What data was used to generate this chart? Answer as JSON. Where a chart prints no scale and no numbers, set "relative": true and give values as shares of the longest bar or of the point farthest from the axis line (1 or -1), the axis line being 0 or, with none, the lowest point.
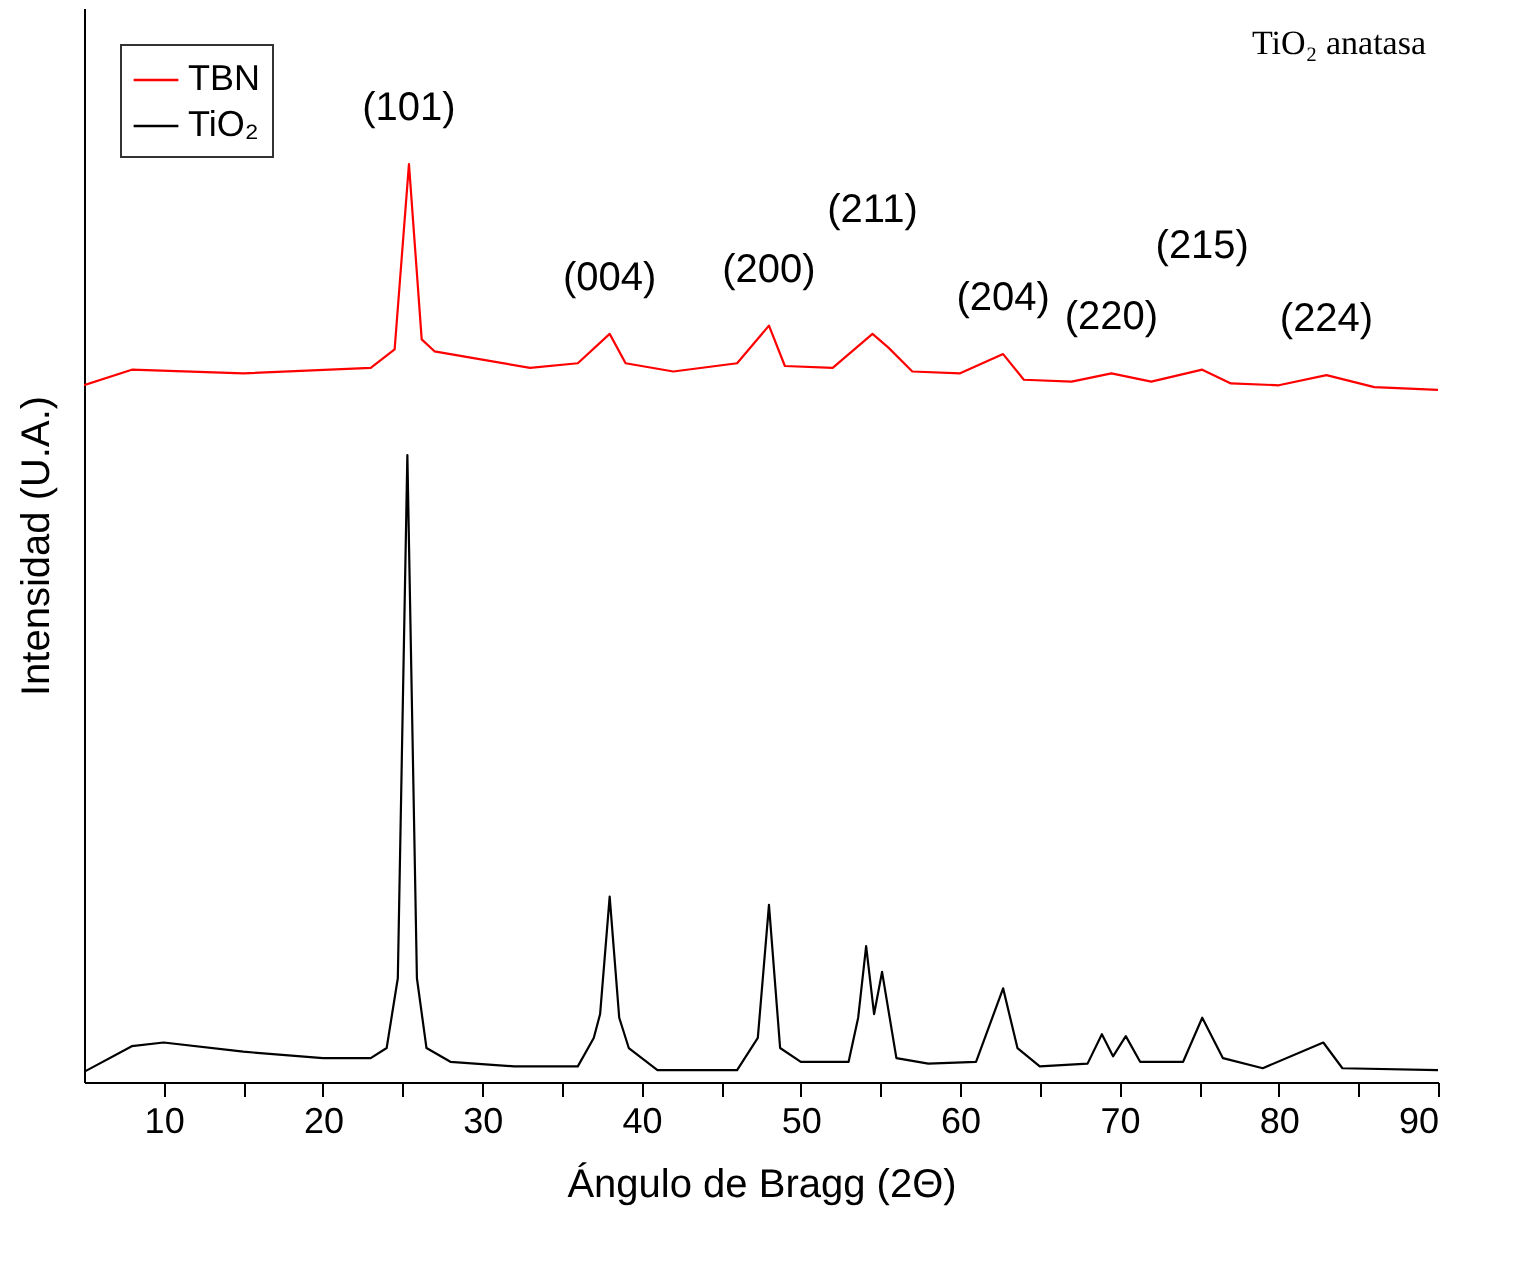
{
  "chart_data": {
    "type": "line",
    "xlabel": "Ángulo de Bragg (2Θ)",
    "ylabel": "Intensidad (U.A.)",
    "relative": true,
    "legend": "top left",
    "xlim": [
      5,
      90
    ],
    "xticks": [
      10,
      {
        "value": 15,
        "label": null
      },
      20,
      {
        "value": 25,
        "label": null
      },
      30,
      {
        "value": 35,
        "label": null
      },
      40,
      {
        "value": 45,
        "label": null
      },
      50,
      {
        "value": 55,
        "label": null
      },
      60,
      {
        "value": 65,
        "label": null
      },
      70,
      {
        "value": 75,
        "label": null
      },
      80,
      {
        "value": 85,
        "label": null
      },
      90
    ],
    "annotations": [
      "TiO₂ anatasa",
      {
        "text": "(101)",
        "x": 25.4,
        "y": 1
      },
      {
        "text": "(004)",
        "x": 38,
        "y": 0.815
      },
      {
        "text": "(200)",
        "x": 48,
        "y": 0.824
      },
      {
        "text": "(211)",
        "x": 54.5,
        "y": 0.815
      },
      {
        "text": "(204)",
        "x": 62.7,
        "y": 0.793
      },
      {
        "text": "(220)",
        "x": 69.5,
        "y": 0.772
      },
      {
        "text": "(215)",
        "x": 75.2,
        "y": 0.776
      },
      {
        "text": "(224)",
        "x": 83,
        "y": 0.77
      }
    ],
    "series": [
      {
        "name": "TBN",
        "color": "#ff0000",
        "x": [
          5,
          8,
          15,
          23,
          24.5,
          25.4,
          26.2,
          27,
          30,
          33,
          36,
          38,
          39,
          42,
          46,
          48,
          49,
          52,
          54.5,
          55.5,
          57,
          60,
          62.7,
          64,
          67,
          69.5,
          72,
          75.2,
          77,
          80,
          83,
          86,
          90
        ],
        "values": [
          0.759,
          0.776,
          0.772,
          0.778,
          0.798,
          1,
          0.809,
          0.796,
          0.787,
          0.778,
          0.783,
          0.815,
          0.783,
          0.774,
          0.783,
          0.824,
          0.78,
          0.778,
          0.815,
          0.8,
          0.774,
          0.772,
          0.793,
          0.765,
          0.763,
          0.772,
          0.763,
          0.776,
          0.761,
          0.759,
          0.77,
          0.757,
          0.754
        ]
      },
      {
        "name": "TiO₂",
        "color": "#000000",
        "x": [
          5,
          8,
          10,
          15,
          20,
          23,
          24,
          24.7,
          25.3,
          25.9,
          26.5,
          28,
          32,
          36,
          37,
          37.4,
          38,
          38.6,
          39.2,
          41,
          46,
          47.3,
          48,
          48.7,
          50,
          53,
          53.6,
          54.1,
          54.6,
          55.1,
          56,
          58,
          61,
          62.7,
          63.6,
          65,
          68,
          68.9,
          69.6,
          70.4,
          71.3,
          74,
          75.2,
          76.5,
          79,
          82.8,
          84,
          90
        ],
        "values": [
          0.011,
          0.039,
          0.043,
          0.033,
          0.026,
          0.026,
          0.037,
          0.113,
          0.683,
          0.113,
          0.037,
          0.022,
          0.017,
          0.017,
          0.048,
          0.074,
          0.202,
          0.07,
          0.037,
          0.013,
          0.013,
          0.048,
          0.193,
          0.037,
          0.022,
          0.022,
          0.07,
          0.148,
          0.074,
          0.12,
          0.026,
          0.02,
          0.022,
          0.102,
          0.037,
          0.017,
          0.02,
          0.052,
          0.028,
          0.05,
          0.022,
          0.022,
          0.07,
          0.026,
          0.015,
          0.043,
          0.015,
          0.013
        ]
      }
    ]
  }
}
